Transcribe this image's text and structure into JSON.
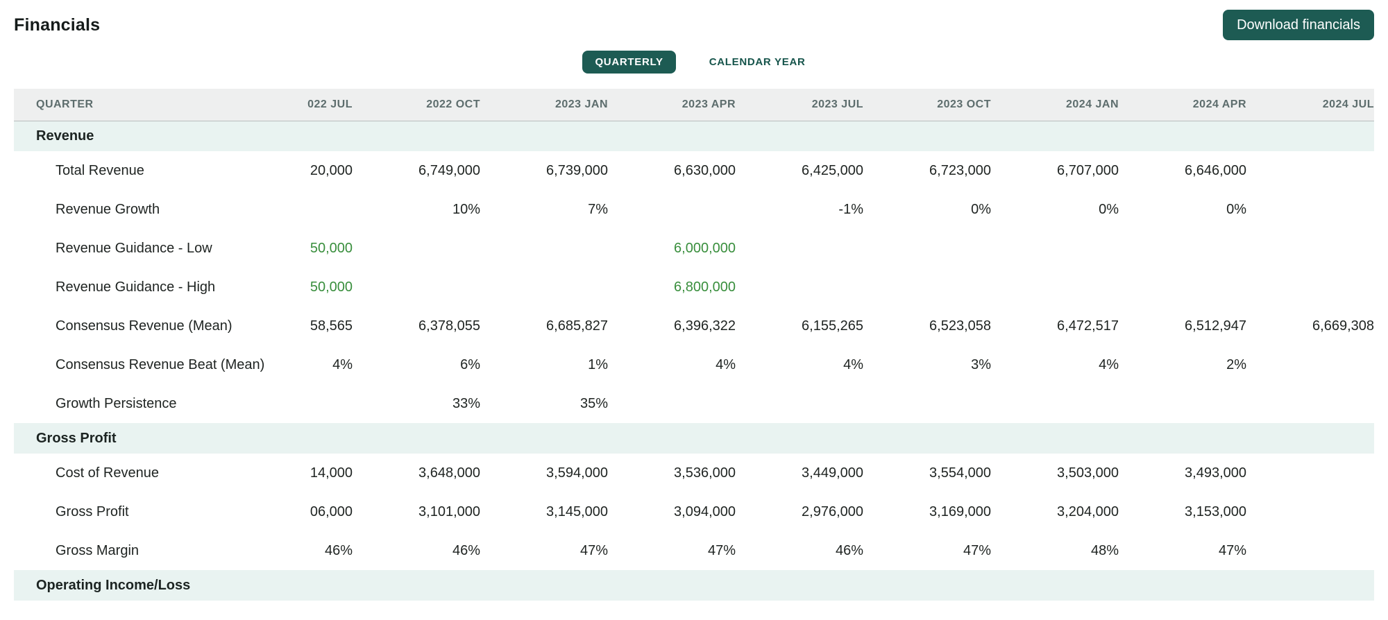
{
  "page": {
    "title": "Financials"
  },
  "toolbar": {
    "download_label": "Download financials"
  },
  "tabs": [
    {
      "label": "QUARTERLY",
      "active": true
    },
    {
      "label": "CALENDAR YEAR",
      "active": false
    }
  ],
  "colors": {
    "accent_teal": "#1d5b53",
    "tab_text_teal": "#16544b",
    "guidance_green": "#388e3c",
    "header_bg": "#eeefef",
    "header_text": "#5d6d6d",
    "section_bg": "#e9f3f1"
  },
  "table": {
    "label_header": "QUARTER",
    "columns": [
      "022 JUL",
      "2022 OCT",
      "2023 JAN",
      "2023 APR",
      "2023 JUL",
      "2023 OCT",
      "2024 JAN",
      "2024 APR",
      "2024 JUL"
    ],
    "sections": [
      {
        "title": "Revenue",
        "rows": [
          {
            "label": "Total Revenue",
            "values": [
              "20,000",
              "6,749,000",
              "6,739,000",
              "6,630,000",
              "6,425,000",
              "6,723,000",
              "6,707,000",
              "6,646,000",
              ""
            ],
            "highlight": ""
          },
          {
            "label": "Revenue Growth",
            "values": [
              "",
              "10%",
              "7%",
              "",
              "-1%",
              "0%",
              "0%",
              "0%",
              ""
            ],
            "highlight": ""
          },
          {
            "label": "Revenue Guidance - Low",
            "values": [
              "50,000",
              "",
              "",
              "6,000,000",
              "",
              "",
              "",
              "",
              ""
            ],
            "highlight": "green"
          },
          {
            "label": "Revenue Guidance - High",
            "values": [
              "50,000",
              "",
              "",
              "6,800,000",
              "",
              "",
              "",
              "",
              ""
            ],
            "highlight": "green"
          },
          {
            "label": "Consensus Revenue (Mean)",
            "values": [
              "58,565",
              "6,378,055",
              "6,685,827",
              "6,396,322",
              "6,155,265",
              "6,523,058",
              "6,472,517",
              "6,512,947",
              "6,669,308"
            ],
            "highlight": ""
          },
          {
            "label": "Consensus Revenue Beat (Mean)",
            "values": [
              "4%",
              "6%",
              "1%",
              "4%",
              "4%",
              "3%",
              "4%",
              "2%",
              ""
            ],
            "highlight": ""
          },
          {
            "label": "Growth Persistence",
            "values": [
              "",
              "33%",
              "35%",
              "",
              "",
              "",
              "",
              "",
              ""
            ],
            "highlight": ""
          }
        ]
      },
      {
        "title": "Gross Profit",
        "rows": [
          {
            "label": "Cost of Revenue",
            "values": [
              "14,000",
              "3,648,000",
              "3,594,000",
              "3,536,000",
              "3,449,000",
              "3,554,000",
              "3,503,000",
              "3,493,000",
              ""
            ],
            "highlight": ""
          },
          {
            "label": "Gross Profit",
            "values": [
              "06,000",
              "3,101,000",
              "3,145,000",
              "3,094,000",
              "2,976,000",
              "3,169,000",
              "3,204,000",
              "3,153,000",
              ""
            ],
            "highlight": ""
          },
          {
            "label": "Gross Margin",
            "values": [
              "46%",
              "46%",
              "47%",
              "47%",
              "46%",
              "47%",
              "48%",
              "47%",
              ""
            ],
            "highlight": ""
          }
        ]
      },
      {
        "title": "Operating Income/Loss",
        "rows": []
      }
    ]
  }
}
